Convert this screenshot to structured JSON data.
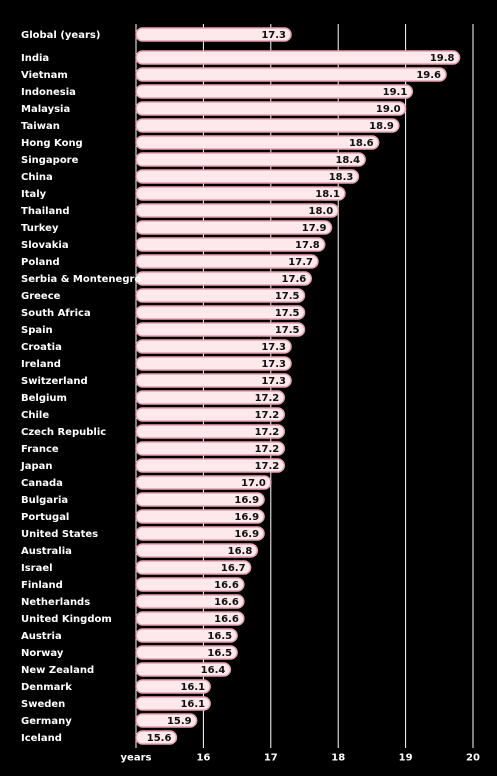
{
  "chart_data": {
    "type": "bar",
    "orientation": "horizontal",
    "categories": [
      "Global (years)",
      "India",
      "Vietnam",
      "Indonesia",
      "Malaysia",
      "Taiwan",
      "Hong Kong",
      "Singapore",
      "China",
      "Italy",
      "Thailand",
      "Turkey",
      "Slovakia",
      "Poland",
      "Serbia & Montenegro",
      "Greece",
      "South Africa",
      "Spain",
      "Croatia",
      "Ireland",
      "Switzerland",
      "Belgium",
      "Chile",
      "Czech Republic",
      "France",
      "Japan",
      "Canada",
      "Bulgaria",
      "Portugal",
      "United States",
      "Australia",
      "Israel",
      "Finland",
      "Netherlands",
      "United Kingdom",
      "Austria",
      "Norway",
      "New Zealand",
      "Denmark",
      "Sweden",
      "Germany",
      "Iceland"
    ],
    "values": [
      17.3,
      19.8,
      19.6,
      19.1,
      19.0,
      18.9,
      18.6,
      18.4,
      18.3,
      18.1,
      18.0,
      17.9,
      17.8,
      17.7,
      17.6,
      17.5,
      17.5,
      17.5,
      17.3,
      17.3,
      17.3,
      17.2,
      17.2,
      17.2,
      17.2,
      17.2,
      17.0,
      16.9,
      16.9,
      16.9,
      16.8,
      16.7,
      16.6,
      16.6,
      16.6,
      16.5,
      16.5,
      16.4,
      16.1,
      16.1,
      15.9,
      15.6
    ],
    "value_labels": [
      "17.3",
      "19.8",
      "19.6",
      "19.1",
      "19.0",
      "18.9",
      "18.6",
      "18.4",
      "18.3",
      "18.1",
      "18.0",
      "17.9",
      "17.8",
      "17.7",
      "17.6",
      "17.5",
      "17.5",
      "17.5",
      "17.3",
      "17.3",
      "17.3",
      "17.2",
      "17.2",
      "17.2",
      "17.2",
      "17.2",
      "17.0",
      "16.9",
      "16.9",
      "16.9",
      "16.8",
      "16.7",
      "16.6",
      "16.6",
      "16.6",
      "16.5",
      "16.5",
      "16.4",
      "16.1",
      "16.1",
      "15.9",
      "15.6"
    ],
    "xlabel": "years",
    "xlim": [
      15,
      20
    ],
    "xticks": [
      16,
      17,
      18,
      19,
      20
    ],
    "xtick_labels": [
      "16",
      "17",
      "18",
      "19",
      "20"
    ],
    "grid": true,
    "colors": {
      "background": "#000000",
      "bar_fill": "#fde8ec",
      "bar_edge": "#e8a0b0",
      "text": "#ffffff",
      "value_text": "#111111",
      "grid": "#ffffff"
    }
  }
}
